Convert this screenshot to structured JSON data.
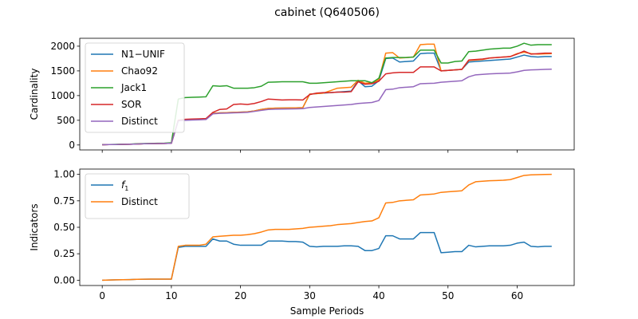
{
  "figure": {
    "title": "cabinet (Q640506)"
  },
  "chart_data": [
    {
      "type": "line",
      "ylabel": "Cardinality",
      "xlabel": "",
      "xlim": [
        -3.25,
        68.25
      ],
      "ylim": [
        -100,
        2160
      ],
      "xticks": [
        0,
        10,
        20,
        30,
        40,
        50,
        60
      ],
      "xtick_labels_visible": false,
      "yticks": [
        0,
        500,
        1000,
        1500,
        2000
      ],
      "ytick_labels": [
        "0",
        "500",
        "1000",
        "1500",
        "2000"
      ],
      "legend_position": "upper-left",
      "grid": false,
      "x": [
        0,
        1,
        2,
        3,
        4,
        5,
        6,
        7,
        8,
        9,
        10,
        11,
        12,
        13,
        14,
        15,
        16,
        17,
        18,
        19,
        20,
        21,
        22,
        23,
        24,
        25,
        26,
        27,
        28,
        29,
        30,
        31,
        32,
        33,
        34,
        35,
        36,
        37,
        38,
        39,
        40,
        41,
        42,
        43,
        44,
        45,
        46,
        47,
        48,
        49,
        50,
        51,
        52,
        53,
        54,
        55,
        56,
        57,
        58,
        59,
        60,
        61,
        62,
        63,
        64,
        65
      ],
      "series": [
        {
          "name": "N1−UNIF",
          "color": "#1f77b4",
          "values": [
            5,
            8,
            10,
            12,
            15,
            20,
            25,
            28,
            30,
            32,
            35,
            500,
            510,
            515,
            520,
            525,
            640,
            650,
            655,
            660,
            665,
            670,
            690,
            720,
            740,
            745,
            748,
            750,
            752,
            755,
            1030,
            1040,
            1050,
            1060,
            1070,
            1080,
            1090,
            1300,
            1180,
            1190,
            1300,
            1750,
            1760,
            1680,
            1690,
            1700,
            1850,
            1860,
            1860,
            1500,
            1510,
            1520,
            1530,
            1680,
            1690,
            1700,
            1710,
            1720,
            1730,
            1740,
            1780,
            1820,
            1790,
            1780,
            1790,
            1790
          ]
        },
        {
          "name": "Chao92",
          "color": "#ff7f0e",
          "values": [
            5,
            8,
            10,
            12,
            15,
            20,
            25,
            28,
            30,
            32,
            35,
            500,
            510,
            515,
            520,
            525,
            640,
            650,
            655,
            660,
            665,
            670,
            690,
            720,
            740,
            745,
            748,
            750,
            752,
            755,
            1030,
            1040,
            1050,
            1100,
            1150,
            1160,
            1170,
            1310,
            1250,
            1260,
            1320,
            1860,
            1870,
            1760,
            1770,
            1780,
            2030,
            2040,
            2040,
            1500,
            1510,
            1520,
            1530,
            1710,
            1720,
            1730,
            1760,
            1770,
            1780,
            1790,
            1850,
            1880,
            1850,
            1840,
            1845,
            1850
          ]
        },
        {
          "name": "Jack1",
          "color": "#2ca02c",
          "values": [
            8,
            10,
            12,
            15,
            18,
            25,
            30,
            32,
            35,
            38,
            45,
            930,
            960,
            965,
            970,
            975,
            1200,
            1190,
            1200,
            1150,
            1150,
            1150,
            1160,
            1190,
            1270,
            1275,
            1280,
            1280,
            1280,
            1280,
            1250,
            1250,
            1260,
            1270,
            1280,
            1290,
            1300,
            1300,
            1300,
            1260,
            1350,
            1760,
            1770,
            1770,
            1770,
            1780,
            1920,
            1920,
            1920,
            1660,
            1660,
            1690,
            1700,
            1890,
            1900,
            1920,
            1940,
            1950,
            1960,
            1960,
            2000,
            2060,
            2020,
            2030,
            2030,
            2030
          ]
        },
        {
          "name": "SOR",
          "color": "#d62728",
          "values": [
            5,
            8,
            10,
            12,
            15,
            20,
            25,
            28,
            30,
            32,
            35,
            500,
            520,
            525,
            530,
            535,
            660,
            720,
            730,
            820,
            830,
            820,
            840,
            880,
            930,
            920,
            910,
            915,
            915,
            910,
            1020,
            1050,
            1060,
            1060,
            1070,
            1070,
            1080,
            1280,
            1230,
            1240,
            1290,
            1440,
            1460,
            1470,
            1470,
            1470,
            1580,
            1580,
            1580,
            1500,
            1510,
            1520,
            1530,
            1720,
            1730,
            1740,
            1760,
            1770,
            1780,
            1790,
            1840,
            1900,
            1840,
            1850,
            1860,
            1860
          ]
        },
        {
          "name": "Distinct",
          "color": "#9467bd",
          "values": [
            5,
            8,
            10,
            12,
            15,
            20,
            25,
            28,
            30,
            32,
            35,
            490,
            500,
            505,
            510,
            515,
            630,
            640,
            645,
            650,
            655,
            660,
            680,
            700,
            720,
            725,
            728,
            730,
            732,
            735,
            760,
            770,
            780,
            790,
            800,
            810,
            820,
            840,
            850,
            860,
            900,
            1120,
            1130,
            1160,
            1170,
            1180,
            1240,
            1245,
            1250,
            1270,
            1280,
            1290,
            1300,
            1380,
            1420,
            1430,
            1440,
            1445,
            1450,
            1455,
            1480,
            1510,
            1520,
            1525,
            1530,
            1535
          ]
        }
      ]
    },
    {
      "type": "line",
      "ylabel": "Indicators",
      "xlabel": "Sample Periods",
      "xlim": [
        -3.25,
        68.25
      ],
      "ylim": [
        -0.05,
        1.05
      ],
      "xticks": [
        0,
        10,
        20,
        30,
        40,
        50,
        60
      ],
      "xtick_labels": [
        "0",
        "10",
        "20",
        "30",
        "40",
        "50",
        "60"
      ],
      "yticks": [
        0,
        0.25,
        0.5,
        0.75,
        1.0
      ],
      "ytick_labels": [
        "0.00",
        "0.25",
        "0.50",
        "0.75",
        "1.00"
      ],
      "legend_position": "upper-left",
      "grid": false,
      "x": [
        0,
        1,
        2,
        3,
        4,
        5,
        6,
        7,
        8,
        9,
        10,
        11,
        12,
        13,
        14,
        15,
        16,
        17,
        18,
        19,
        20,
        21,
        22,
        23,
        24,
        25,
        26,
        27,
        28,
        29,
        30,
        31,
        32,
        33,
        34,
        35,
        36,
        37,
        38,
        39,
        40,
        41,
        42,
        43,
        44,
        45,
        46,
        47,
        48,
        49,
        50,
        51,
        52,
        53,
        54,
        55,
        56,
        57,
        58,
        59,
        60,
        61,
        62,
        63,
        64,
        65
      ],
      "series": [
        {
          "name": "f1",
          "label_main": "f",
          "label_sub": "1",
          "color": "#1f77b4",
          "values": [
            0.0,
            0.002,
            0.004,
            0.005,
            0.006,
            0.008,
            0.009,
            0.01,
            0.01,
            0.01,
            0.01,
            0.31,
            0.32,
            0.32,
            0.32,
            0.32,
            0.39,
            0.37,
            0.37,
            0.34,
            0.33,
            0.33,
            0.33,
            0.33,
            0.37,
            0.37,
            0.37,
            0.365,
            0.365,
            0.36,
            0.32,
            0.315,
            0.32,
            0.32,
            0.32,
            0.325,
            0.325,
            0.32,
            0.28,
            0.28,
            0.3,
            0.42,
            0.42,
            0.39,
            0.39,
            0.39,
            0.45,
            0.45,
            0.45,
            0.26,
            0.265,
            0.27,
            0.27,
            0.33,
            0.315,
            0.32,
            0.325,
            0.325,
            0.325,
            0.33,
            0.35,
            0.36,
            0.32,
            0.315,
            0.32,
            0.32
          ]
        },
        {
          "name": "Distinct",
          "color": "#ff7f0e",
          "values": [
            0.0,
            0.002,
            0.004,
            0.005,
            0.006,
            0.008,
            0.009,
            0.01,
            0.01,
            0.01,
            0.01,
            0.32,
            0.33,
            0.33,
            0.33,
            0.34,
            0.41,
            0.415,
            0.42,
            0.425,
            0.425,
            0.43,
            0.44,
            0.455,
            0.475,
            0.48,
            0.48,
            0.48,
            0.485,
            0.49,
            0.5,
            0.505,
            0.51,
            0.515,
            0.525,
            0.53,
            0.535,
            0.545,
            0.555,
            0.56,
            0.59,
            0.73,
            0.735,
            0.75,
            0.755,
            0.76,
            0.805,
            0.81,
            0.815,
            0.83,
            0.835,
            0.84,
            0.845,
            0.9,
            0.93,
            0.935,
            0.94,
            0.942,
            0.945,
            0.95,
            0.97,
            0.99,
            0.995,
            0.997,
            0.999,
            1.0
          ]
        }
      ]
    }
  ]
}
